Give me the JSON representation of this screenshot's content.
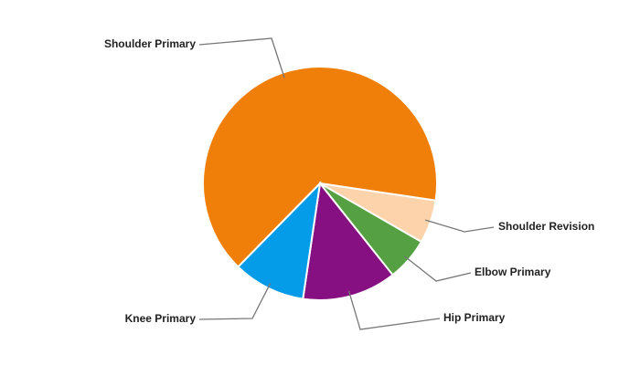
{
  "chart_data": {
    "type": "pie",
    "categories": [
      "Shoulder Primary",
      "Shoulder Revision",
      "Elbow Primary",
      "Hip Primary",
      "Knee Primary"
    ],
    "values": [
      65,
      6,
      6,
      13,
      10
    ],
    "colors": [
      "#f07f09",
      "#fcd3aa",
      "#54a042",
      "#861082",
      "#049ce8"
    ]
  }
}
